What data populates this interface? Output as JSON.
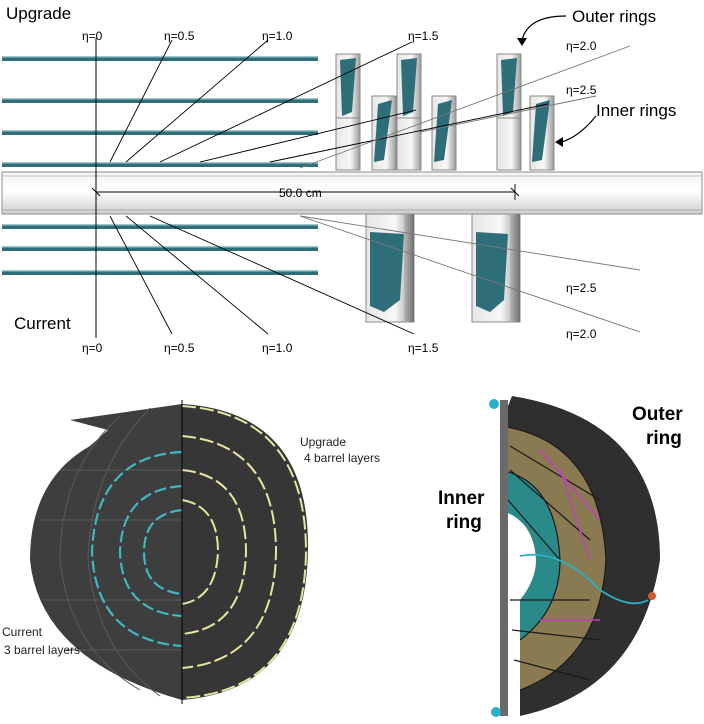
{
  "top": {
    "upgrade_label": "Upgrade",
    "current_label": "Current",
    "outer_rings_label": "Outer rings",
    "inner_rings_label": "Inner rings",
    "distance_label": "50.0 cm",
    "upgrade_eta": [
      "η=0",
      "η=0.5",
      "η=1.0",
      "η=1.5",
      "η=2.0",
      "η=2.5"
    ],
    "current_eta": [
      "η=0",
      "η=0.5",
      "η=1.0",
      "η=1.5",
      "η=2.5",
      "η=2.0"
    ]
  },
  "bottom_left": {
    "upgrade_label_1": "Upgrade",
    "upgrade_label_2": "4 barrel layers",
    "current_label_1": "Current",
    "current_label_2": "3 barrel layers"
  },
  "bottom_right": {
    "outer_label_1": "Outer",
    "outer_label_2": "ring",
    "inner_label_1": "Inner",
    "inner_label_2": "ring"
  },
  "colors": {
    "teal": "#2e6e78",
    "dark_gray": "#3a3a3a",
    "yellow_outline": "#e8e4a0",
    "cyan_outline": "#3fb8c0"
  }
}
